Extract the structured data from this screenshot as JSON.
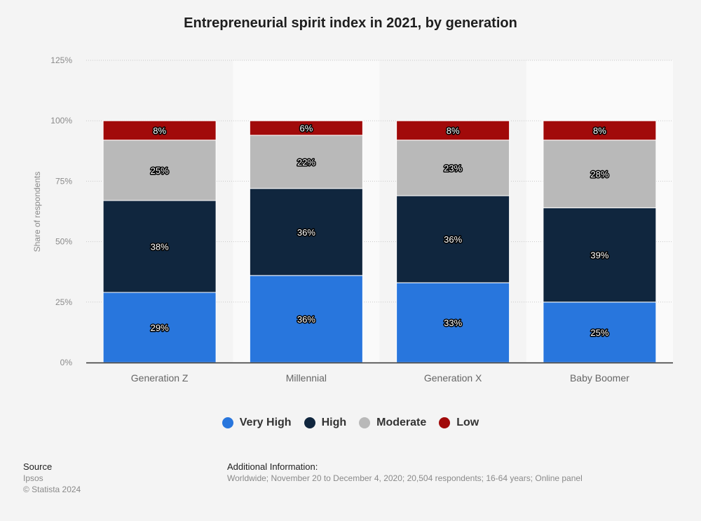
{
  "chart_data": {
    "type": "bar",
    "stacked": true,
    "title": "Entrepreneurial spirit index in 2021, by generation",
    "xlabel": "",
    "ylabel": "Share of respondents",
    "ylim": [
      0,
      125
    ],
    "yticks": [
      "0%",
      "25%",
      "50%",
      "75%",
      "100%",
      "125%"
    ],
    "ytick_values": [
      0,
      25,
      50,
      75,
      100,
      125
    ],
    "grid": true,
    "legend_position": "bottom",
    "categories": [
      "Generation Z",
      "Millennial",
      "Generation X",
      "Baby Boomer"
    ],
    "series": [
      {
        "name": "Very High",
        "color": "#2876dd",
        "values": [
          29,
          36,
          33,
          25
        ]
      },
      {
        "name": "High",
        "color": "#10263e",
        "values": [
          38,
          36,
          36,
          39
        ]
      },
      {
        "name": "Moderate",
        "color": "#b9b9b9",
        "values": [
          25,
          22,
          23,
          28
        ]
      },
      {
        "name": "Low",
        "color": "#a10a0a",
        "values": [
          8,
          6,
          8,
          8
        ]
      }
    ],
    "value_suffix": "%"
  },
  "legend": [
    {
      "label": "Very High",
      "color": "#2876dd"
    },
    {
      "label": "High",
      "color": "#10263e"
    },
    {
      "label": "Moderate",
      "color": "#b9b9b9"
    },
    {
      "label": "Low",
      "color": "#a10a0a"
    }
  ],
  "footer": {
    "source_label": "Source",
    "source_name": "Ipsos",
    "copyright": "© Statista 2024",
    "info_label": "Additional Information:",
    "info_text": "Worldwide; November 20 to December 4, 2020; 20,504 respondents; 16-64 years; Online panel"
  }
}
